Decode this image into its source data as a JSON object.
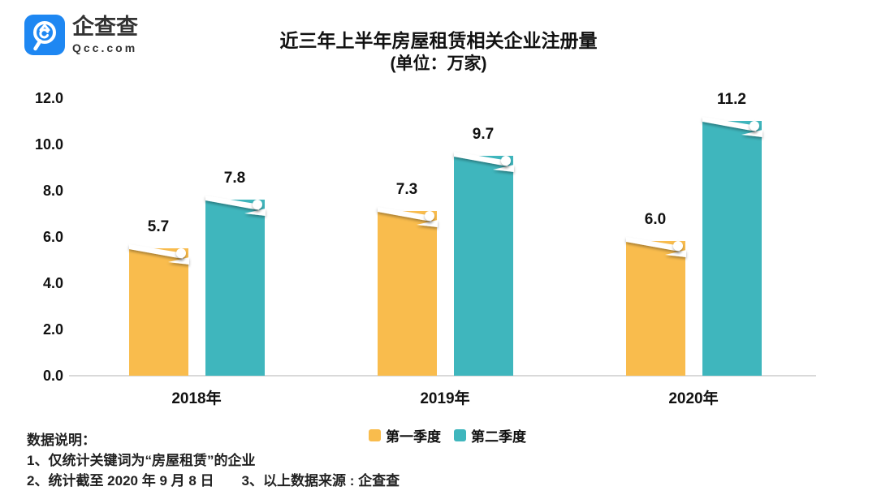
{
  "logo": {
    "brand": "企查查",
    "domain": "Qcc.com",
    "icon": "magnifier-q-icon",
    "brand_color": "#1E87F2",
    "text_color": "#333333"
  },
  "title": {
    "line1": "近三年上半年房屋租赁相关企业注册量",
    "line2": "(单位：万家)"
  },
  "chart_data": {
    "type": "bar",
    "categories": [
      "2018年",
      "2019年",
      "2020年"
    ],
    "series": [
      {
        "name": "第一季度",
        "color": "#F9BC4D",
        "values": [
          5.7,
          7.3,
          6.0
        ]
      },
      {
        "name": "第二季度",
        "color": "#3FB6BD",
        "values": [
          7.8,
          9.7,
          11.2
        ]
      }
    ],
    "title": "近三年上半年房屋租赁相关企业注册量",
    "subtitle": "(单位：万家)",
    "xlabel": "",
    "ylabel": "",
    "ylim": [
      0,
      12
    ],
    "ytick_step": 2,
    "ytick_labels": [
      "0.0",
      "2.0",
      "4.0",
      "6.0",
      "8.0",
      "10.0",
      "12.0"
    ],
    "grid": false,
    "value_labels": true,
    "legend_position": "bottom",
    "axis_color": "#D9D9D9",
    "bar_style": "page-curl-top"
  },
  "footer": {
    "heading": "数据说明：",
    "note1": "1、仅统计关键词为“房屋租赁”的企业",
    "note2": "2、统计截至 2020 年 9 月 8 日",
    "note3": "3、以上数据来源 : 企查查"
  }
}
